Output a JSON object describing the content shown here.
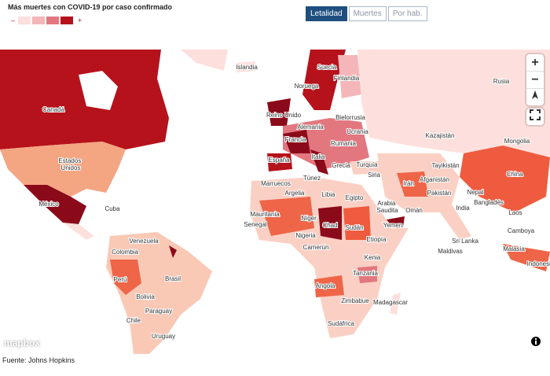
{
  "legend": {
    "title": "Más muertes con COVID-19 por caso confirmado",
    "low": "–",
    "high": "+"
  },
  "toggle": {
    "buttons": [
      "Letalidad",
      "Muertes",
      "Por hab."
    ]
  },
  "zoom": {
    "in": "+",
    "out": "−"
  },
  "map": {
    "labels": [
      "Islandia",
      "Suecia",
      "Finlandia",
      "Rusia",
      "Noruega",
      "Canadá",
      "Reino Unido",
      "Bielorrusia",
      "Alemania",
      "Ucrania",
      "Kazajistán",
      "Mongolia",
      "Francia",
      "Rumania",
      "Estados Unidos",
      "España",
      "Italia",
      "Grecia",
      "Turquía",
      "Tayikistán",
      "China",
      "Siria",
      "Túnez",
      "Marruecos",
      "Irán",
      "Afganistán",
      "Argelia",
      "Libia",
      "Egipto",
      "Pakistán",
      "Nepal",
      "Bangladés",
      "México",
      "Cuba",
      "Arabia Saudita",
      "Omán",
      "India",
      "Laos",
      "Mauritania",
      "Níger",
      "Chad",
      "Sudán",
      "Senegal",
      "Yemen",
      "Camboya",
      "Nigeria",
      "Etiopía",
      "Venezuela",
      "Sri Lanka",
      "Colombia",
      "Camerún",
      "Maldivas",
      "Malasia",
      "Kenia",
      "Perú",
      "Brasil",
      "Tanzania",
      "Indonesia",
      "Angola",
      "Bolivia",
      "Zimbabue",
      "Madagascar",
      "Paraguay",
      "Chile",
      "Sudáfrica",
      "Uruguay"
    ]
  },
  "attribution": "mapbox",
  "source": "Fuente: Johns Hopkins"
}
